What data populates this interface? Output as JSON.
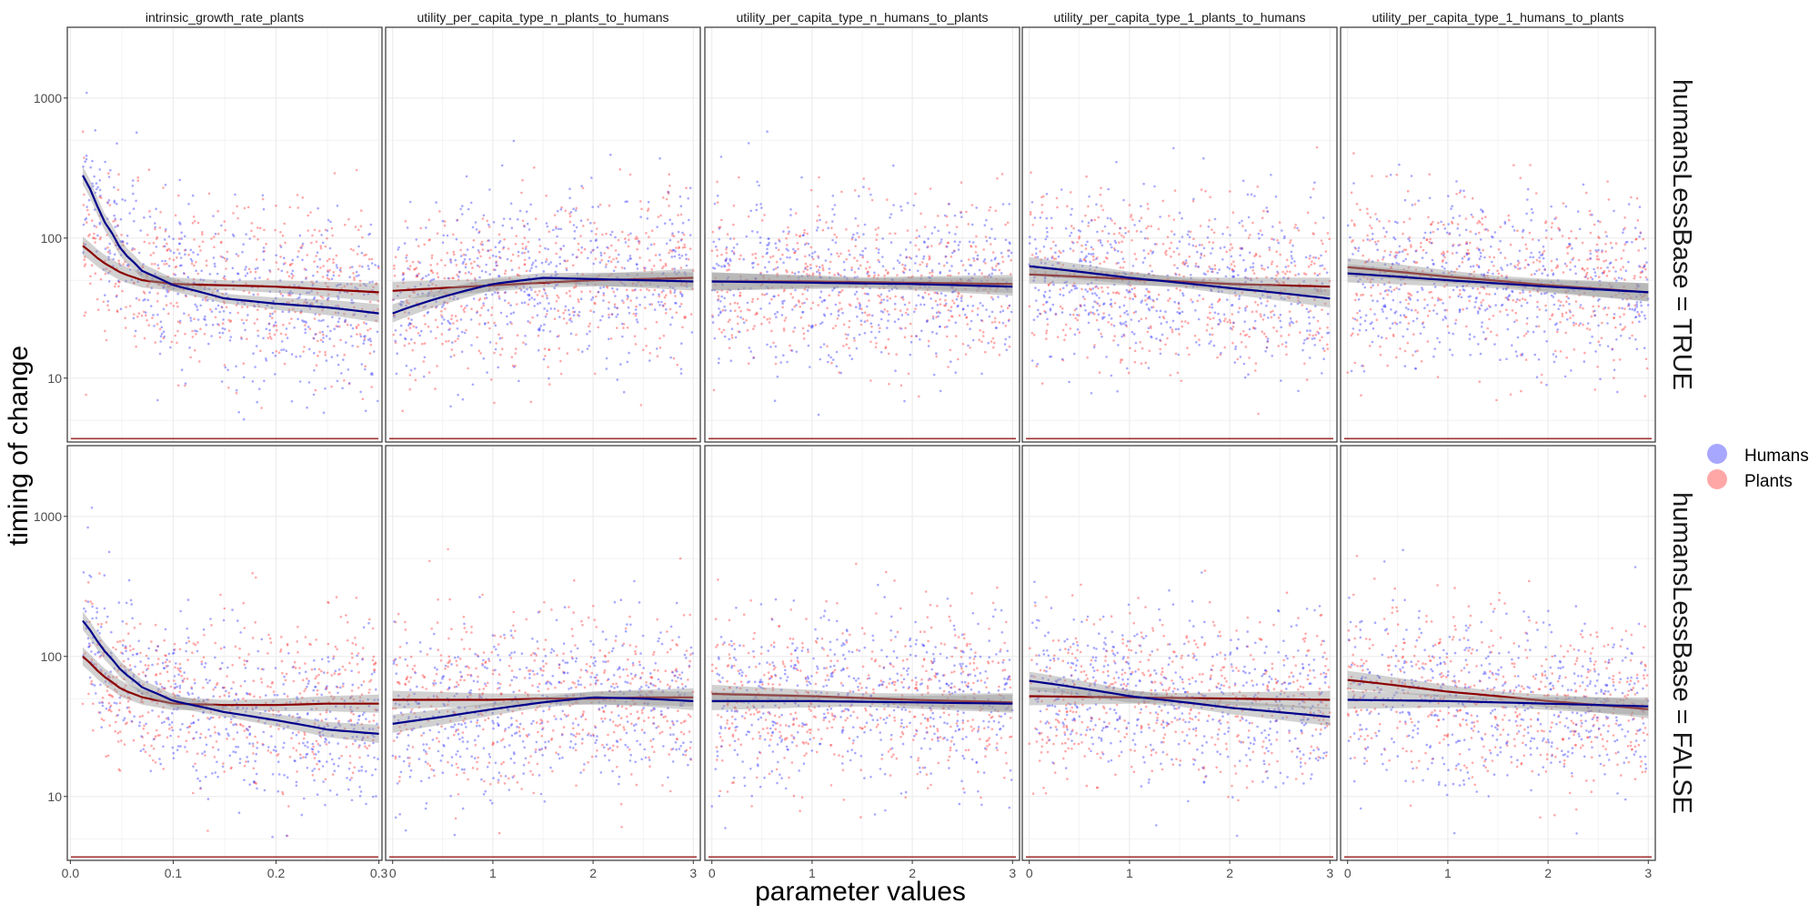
{
  "chart_data": {
    "type": "scatter",
    "title": "",
    "xlabel": "parameter values",
    "ylabel": "timing of change",
    "y_scale": "log10",
    "ylim": [
      3.5,
      3200
    ],
    "y_ticks": [
      10,
      100,
      1000
    ],
    "y_tick_labels": [
      "10",
      "100",
      "1000"
    ],
    "grid": true,
    "legend": {
      "placement": "right",
      "entries": [
        {
          "name": "Humans",
          "color": "#3B3BFF"
        },
        {
          "name": "Plants",
          "color": "#FF3B3B"
        }
      ]
    },
    "colors": {
      "humans_points": "#4040FF",
      "plants_points": "#FF4040",
      "humans_smooth": "#00008B",
      "plants_smooth": "#8B0000",
      "ribbon": "#999999",
      "grid": "#EBEBEB",
      "border": "#333333"
    },
    "columns": [
      {
        "label": "intrinsic_growth_rate_plants",
        "xlim": [
          -0.003,
          0.303
        ],
        "x_ticks": [
          0.0,
          0.1,
          0.2,
          0.3
        ],
        "x_tick_labels": [
          "0.0",
          "0.1",
          "0.2",
          "0.3"
        ]
      },
      {
        "label": "utility_per_capita_type_n_plants_to_humans",
        "xlim": [
          -0.07,
          3.07
        ],
        "x_ticks": [
          0,
          1,
          2,
          3
        ],
        "x_tick_labels": [
          "0",
          "1",
          "2",
          "3"
        ]
      },
      {
        "label": "utility_per_capita_type_n_humans_to_plants",
        "xlim": [
          -0.07,
          3.07
        ],
        "x_ticks": [
          0,
          1,
          2,
          3
        ],
        "x_tick_labels": [
          "0",
          "1",
          "2",
          "3"
        ]
      },
      {
        "label": "utility_per_capita_type_1_plants_to_humans",
        "xlim": [
          -0.07,
          3.07
        ],
        "x_ticks": [
          0,
          1,
          2,
          3
        ],
        "x_tick_labels": [
          "0",
          "1",
          "2",
          "3"
        ]
      },
      {
        "label": "utility_per_capita_type_1_humans_to_plants",
        "xlim": [
          -0.07,
          3.07
        ],
        "x_ticks": [
          0,
          1,
          2,
          3
        ],
        "x_tick_labels": [
          "0",
          "1",
          "2",
          "3"
        ]
      }
    ],
    "rows": [
      {
        "label": "humansLessBase = TRUE"
      },
      {
        "label": "humansLessBase = FALSE"
      }
    ],
    "smooth_lines": [
      {
        "row": 0,
        "col": 0,
        "humans": {
          "x": [
            0.012,
            0.03,
            0.05,
            0.07,
            0.1,
            0.15,
            0.2,
            0.25,
            0.3
          ],
          "y": [
            280,
            140,
            80,
            58,
            46,
            37,
            34,
            32,
            29
          ]
        },
        "plants": {
          "x": [
            0.012,
            0.03,
            0.05,
            0.07,
            0.1,
            0.15,
            0.2,
            0.25,
            0.3
          ],
          "y": [
            88,
            68,
            56,
            50,
            47,
            46,
            45,
            43,
            41
          ]
        }
      },
      {
        "row": 0,
        "col": 1,
        "humans": {
          "x": [
            0,
            0.5,
            1,
            1.5,
            2,
            2.5,
            3
          ],
          "y": [
            29,
            38,
            47,
            52,
            51,
            50,
            49
          ]
        },
        "plants": {
          "x": [
            0,
            0.5,
            1,
            1.5,
            2,
            2.5,
            3
          ],
          "y": [
            42,
            44,
            46,
            48,
            50,
            51,
            52
          ]
        }
      },
      {
        "row": 0,
        "col": 2,
        "humans": {
          "x": [
            0,
            1,
            2,
            3
          ],
          "y": [
            49,
            48,
            47,
            45
          ]
        },
        "plants": {
          "x": [
            0,
            1,
            2,
            3
          ],
          "y": [
            49,
            49,
            48,
            47
          ]
        }
      },
      {
        "row": 0,
        "col": 3,
        "humans": {
          "x": [
            0,
            1,
            2,
            3
          ],
          "y": [
            63,
            52,
            44,
            37
          ]
        },
        "plants": {
          "x": [
            0,
            1,
            2,
            3
          ],
          "y": [
            55,
            51,
            47,
            45
          ]
        }
      },
      {
        "row": 0,
        "col": 4,
        "humans": {
          "x": [
            0,
            1,
            2,
            3
          ],
          "y": [
            56,
            50,
            45,
            41
          ]
        },
        "plants": {
          "x": [
            0,
            1,
            2,
            3
          ],
          "y": [
            62,
            53,
            46,
            41
          ]
        }
      },
      {
        "row": 1,
        "col": 0,
        "humans": {
          "x": [
            0.012,
            0.03,
            0.05,
            0.07,
            0.1,
            0.15,
            0.2,
            0.25,
            0.3
          ],
          "y": [
            180,
            115,
            78,
            60,
            48,
            40,
            35,
            30,
            28
          ]
        },
        "plants": {
          "x": [
            0.012,
            0.03,
            0.05,
            0.07,
            0.1,
            0.15,
            0.2,
            0.25,
            0.3
          ],
          "y": [
            100,
            74,
            58,
            51,
            46,
            45,
            45,
            46,
            46
          ]
        }
      },
      {
        "row": 1,
        "col": 1,
        "humans": {
          "x": [
            0,
            0.5,
            1,
            1.5,
            2,
            2.5,
            3
          ],
          "y": [
            33,
            37,
            42,
            47,
            51,
            50,
            48
          ]
        },
        "plants": {
          "x": [
            0,
            0.5,
            1,
            1.5,
            2,
            2.5,
            3
          ],
          "y": [
            49,
            49,
            49,
            50,
            50,
            51,
            51
          ]
        }
      },
      {
        "row": 1,
        "col": 2,
        "humans": {
          "x": [
            0,
            1,
            2,
            3
          ],
          "y": [
            48,
            48,
            47,
            46
          ]
        },
        "plants": {
          "x": [
            0,
            1,
            2,
            3
          ],
          "y": [
            54,
            52,
            49,
            47
          ]
        }
      },
      {
        "row": 1,
        "col": 3,
        "humans": {
          "x": [
            0,
            1,
            2,
            3
          ],
          "y": [
            67,
            52,
            43,
            37
          ]
        },
        "plants": {
          "x": [
            0,
            1,
            2,
            3
          ],
          "y": [
            52,
            51,
            50,
            49
          ]
        }
      },
      {
        "row": 1,
        "col": 4,
        "humans": {
          "x": [
            0,
            1,
            2,
            3
          ],
          "y": [
            49,
            48,
            46,
            44
          ]
        },
        "plants": {
          "x": [
            0,
            1,
            2,
            3
          ],
          "y": [
            68,
            56,
            48,
            42
          ]
        }
      }
    ],
    "scatter_note_values": {
      "point_spread_y_range": [
        5,
        2500
      ],
      "baseline_y": 3.7
    }
  }
}
